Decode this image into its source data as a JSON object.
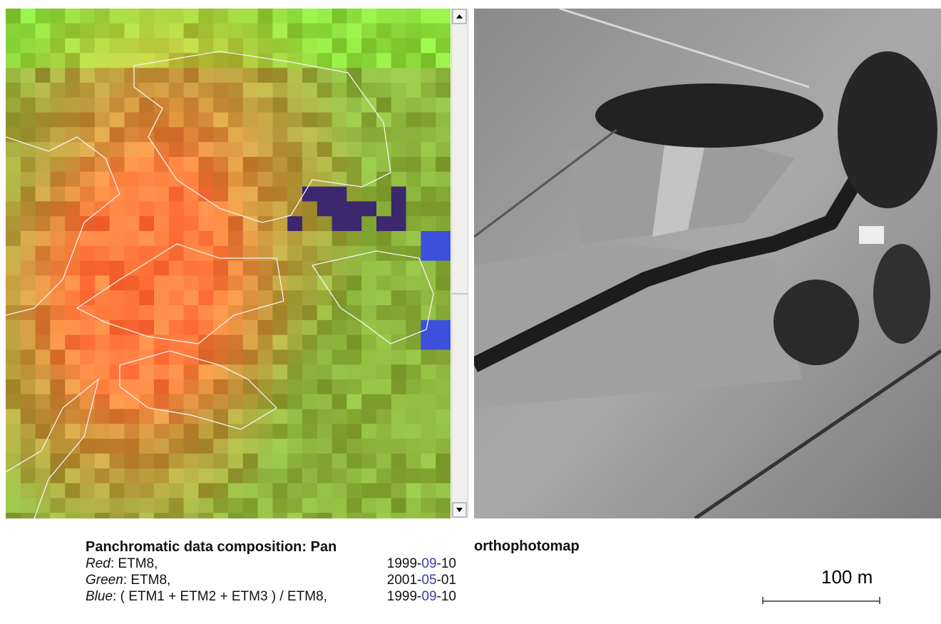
{
  "left_panel": {
    "title": "Panchromatic data composition: Pan",
    "rows": [
      {
        "band": "Red",
        "text": ": ETM8,",
        "date": [
          "1999-",
          "09",
          "-10"
        ]
      },
      {
        "band": "Green",
        "text": ": ETM8,",
        "date": [
          "2001-",
          "05",
          "-01"
        ]
      },
      {
        "band": "Blue",
        "text": ": ( ETM1 + ETM2 + ETM3 ) / ETM8,",
        "date": [
          "1999-",
          "09",
          "-10"
        ]
      }
    ]
  },
  "right_panel": {
    "title": "orthophotomap",
    "scale_label": "100 m"
  }
}
